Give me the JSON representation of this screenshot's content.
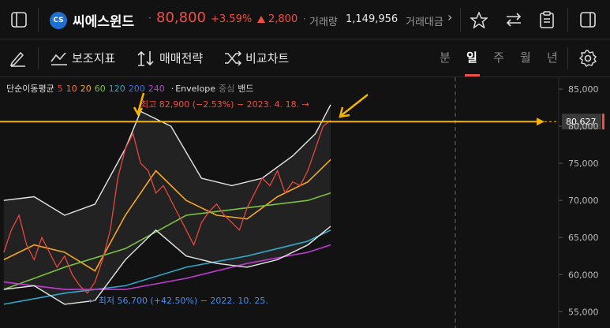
{
  "header": {
    "badge": "CS",
    "name": "씨에스윈드",
    "price": "80,800",
    "change_pct": "+3.59%",
    "change": "2,800",
    "volume_label": "거래량",
    "volume": "1,149,956",
    "amount_label": "거래대금"
  },
  "toolbar": {
    "indicators": "보조지표",
    "strategy": "매매전략",
    "compare": "비교차트",
    "periods": [
      "분",
      "일",
      "주",
      "월",
      "년"
    ],
    "active_period": "일"
  },
  "chart_data": {
    "type": "line",
    "xlim": [
      -0.5,
      73
    ],
    "ylim": [
      52800,
      86600
    ],
    "yticks": [
      {
        "value": 55000,
        "label": "55,000"
      },
      {
        "value": 60000,
        "label": "60,000"
      },
      {
        "value": 65000,
        "label": "65,000"
      },
      {
        "value": 70000,
        "label": "70,000"
      },
      {
        "value": 75000,
        "label": "75,000"
      },
      {
        "value": 80000,
        "label": "80,000"
      },
      {
        "value": 85000,
        "label": "85,000"
      }
    ],
    "legend_title": "단순이동평균",
    "price": {
      "color": "#e5483f",
      "x": [
        0,
        1,
        2,
        3,
        4,
        5,
        6,
        7,
        8,
        9,
        10,
        11,
        12,
        13,
        14,
        15,
        16,
        17,
        18,
        19,
        20,
        21,
        22,
        23,
        24,
        25,
        26,
        27,
        28,
        29,
        30,
        31,
        32,
        33,
        34,
        35,
        36,
        37,
        38,
        39,
        40,
        41,
        42,
        43
      ],
      "values": [
        63000,
        66000,
        68000,
        64000,
        62000,
        65000,
        63000,
        61000,
        62500,
        60000,
        58500,
        57500,
        59000,
        62000,
        66000,
        73000,
        77000,
        79000,
        75000,
        74000,
        71000,
        72000,
        70000,
        68000,
        66000,
        64000,
        67000,
        68500,
        69500,
        68000,
        67000,
        66000,
        69000,
        71000,
        73000,
        72000,
        74000,
        71000,
        72500,
        72000,
        74000,
        77000,
        80000,
        80800
      ]
    },
    "moving_averages": [
      {
        "name": "5",
        "color": "#e5483f"
      },
      {
        "name": "10",
        "color": "#f07b2e"
      },
      {
        "name": "20",
        "color": "#f5a623",
        "x": [
          0,
          4,
          8,
          12,
          16,
          20,
          24,
          28,
          32,
          36,
          40,
          43
        ],
        "values": [
          62000,
          64000,
          63000,
          60500,
          68000,
          74000,
          70000,
          68000,
          67500,
          70500,
          72500,
          75500
        ]
      },
      {
        "name": "60",
        "color": "#7cc242",
        "x": [
          0,
          8,
          16,
          24,
          32,
          40,
          43
        ],
        "values": [
          58000,
          61000,
          63500,
          68000,
          69000,
          70000,
          71000
        ]
      },
      {
        "name": "120",
        "color": "#2fa7c9",
        "x": [
          0,
          8,
          16,
          24,
          32,
          40,
          43
        ],
        "values": [
          56000,
          57500,
          58500,
          61000,
          62500,
          64500,
          66000
        ]
      },
      {
        "name": "200",
        "color": "#3f6fe0"
      },
      {
        "name": "240",
        "color": "#c23ad6",
        "x": [
          0,
          8,
          16,
          24,
          32,
          40,
          43
        ],
        "values": [
          59000,
          58000,
          58000,
          59500,
          61500,
          63000,
          64000
        ]
      }
    ],
    "envelope": {
      "name": "Envelope",
      "center": "중심",
      "band": "밴드",
      "color": "#e6e6e6",
      "upper": {
        "x": [
          0,
          4,
          8,
          12,
          16,
          18,
          22,
          26,
          30,
          34,
          38,
          41,
          43
        ],
        "values": [
          70000,
          70500,
          68000,
          69500,
          77000,
          82000,
          80000,
          73000,
          72000,
          73000,
          76000,
          79000,
          82900
        ]
      },
      "lower": {
        "x": [
          0,
          4,
          8,
          12,
          16,
          20,
          24,
          28,
          32,
          36,
          40,
          43
        ],
        "values": [
          58000,
          58500,
          56000,
          56500,
          62000,
          66000,
          62500,
          61500,
          61000,
          62000,
          64000,
          66500
        ]
      }
    },
    "current": {
      "value": 80627,
      "label": "80,627",
      "color": "#f5b400"
    },
    "high_note": "최고 82,900 (−2.53%) − 2023. 4. 18. →",
    "low_note": "← 최저 56,700 (+42.50%) − 2022. 10. 25."
  }
}
